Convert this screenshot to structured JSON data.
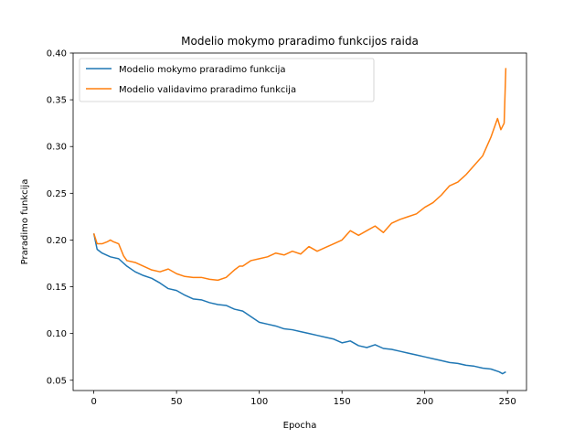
{
  "chart_data": {
    "type": "line",
    "title": "Modelio mokymo praradimo funkcijos raida",
    "xlabel": "Epocha",
    "ylabel": "Praradimo funkcija",
    "xlim": [
      -12.5,
      261.5
    ],
    "ylim": [
      0.039,
      0.4
    ],
    "xticks": [
      0,
      50,
      100,
      150,
      200,
      250
    ],
    "xtick_labels": [
      "0",
      "50",
      "100",
      "150",
      "200",
      "250"
    ],
    "yticks": [
      0.05,
      0.1,
      0.15,
      0.2,
      0.25,
      0.3,
      0.35,
      0.4
    ],
    "ytick_labels": [
      "0.05",
      "0.10",
      "0.15",
      "0.20",
      "0.25",
      "0.30",
      "0.35",
      "0.40"
    ],
    "grid": false,
    "legend_position": "upper left",
    "series": [
      {
        "name": "Modelio mokymo praradimo funkcija",
        "color": "#1f77b4",
        "x": [
          0,
          2,
          5,
          10,
          15,
          20,
          25,
          30,
          35,
          40,
          45,
          50,
          55,
          60,
          65,
          70,
          75,
          80,
          85,
          90,
          95,
          100,
          105,
          110,
          115,
          120,
          125,
          130,
          135,
          140,
          145,
          150,
          155,
          160,
          165,
          170,
          175,
          180,
          185,
          190,
          195,
          200,
          205,
          210,
          215,
          220,
          225,
          230,
          235,
          240,
          245,
          247,
          249
        ],
        "y": [
          0.207,
          0.19,
          0.186,
          0.182,
          0.18,
          0.172,
          0.166,
          0.162,
          0.159,
          0.154,
          0.148,
          0.146,
          0.141,
          0.137,
          0.136,
          0.133,
          0.131,
          0.13,
          0.126,
          0.124,
          0.118,
          0.112,
          0.11,
          0.108,
          0.105,
          0.104,
          0.102,
          0.1,
          0.098,
          0.096,
          0.094,
          0.09,
          0.092,
          0.087,
          0.085,
          0.088,
          0.084,
          0.083,
          0.081,
          0.079,
          0.077,
          0.075,
          0.073,
          0.071,
          0.069,
          0.068,
          0.066,
          0.065,
          0.063,
          0.062,
          0.059,
          0.057,
          0.059
        ]
      },
      {
        "name": "Modelio validavimo praradimo funkcija",
        "color": "#ff7f0e",
        "x": [
          0,
          2,
          5,
          8,
          10,
          12,
          15,
          18,
          20,
          25,
          30,
          35,
          40,
          45,
          50,
          55,
          60,
          65,
          70,
          75,
          80,
          85,
          88,
          90,
          95,
          100,
          105,
          110,
          115,
          120,
          125,
          130,
          135,
          140,
          145,
          150,
          155,
          160,
          165,
          170,
          175,
          180,
          185,
          190,
          195,
          200,
          205,
          210,
          215,
          220,
          225,
          230,
          235,
          240,
          244,
          246,
          248,
          249
        ],
        "y": [
          0.207,
          0.196,
          0.196,
          0.198,
          0.2,
          0.198,
          0.196,
          0.183,
          0.178,
          0.176,
          0.172,
          0.168,
          0.166,
          0.169,
          0.164,
          0.161,
          0.16,
          0.16,
          0.158,
          0.157,
          0.16,
          0.168,
          0.172,
          0.172,
          0.178,
          0.18,
          0.182,
          0.186,
          0.184,
          0.188,
          0.185,
          0.193,
          0.188,
          0.192,
          0.196,
          0.2,
          0.21,
          0.205,
          0.21,
          0.215,
          0.208,
          0.218,
          0.222,
          0.225,
          0.228,
          0.235,
          0.24,
          0.248,
          0.258,
          0.262,
          0.27,
          0.28,
          0.29,
          0.31,
          0.33,
          0.318,
          0.325,
          0.384
        ]
      }
    ]
  }
}
